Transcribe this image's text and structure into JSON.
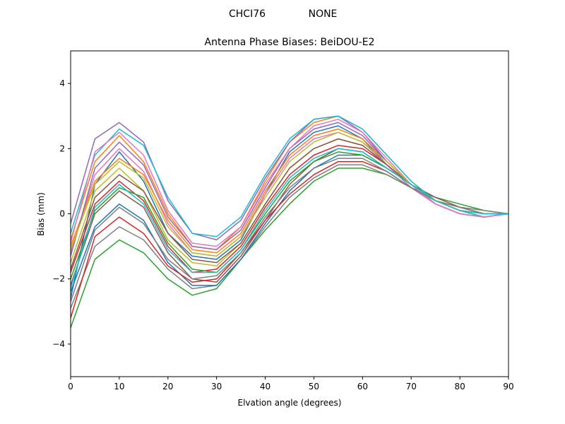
{
  "suptitle": {
    "left": "CHCI76",
    "right": "NONE"
  },
  "chart_data": {
    "type": "line",
    "title": "Antenna Phase Biases: BeiDOU-E2",
    "xlabel": "Elvation angle (degrees)",
    "ylabel": "Bias (mm)",
    "xlim": [
      0,
      90
    ],
    "ylim": [
      -5,
      5
    ],
    "xticks": [
      0,
      10,
      20,
      30,
      40,
      50,
      60,
      70,
      80,
      90
    ],
    "yticks": [
      -4,
      -2,
      0,
      2,
      4
    ],
    "ytick_labels": [
      "−4",
      "−2",
      "0",
      "2",
      "4"
    ],
    "grid": false,
    "legend": "none",
    "colors": [
      "#1f77b4",
      "#ff7f0e",
      "#2ca02c",
      "#d62728",
      "#9467bd",
      "#8c564b",
      "#e377c2",
      "#7f7f7f",
      "#bcbd22",
      "#17becf"
    ],
    "x": [
      0,
      5,
      10,
      15,
      20,
      25,
      30,
      35,
      40,
      45,
      50,
      55,
      60,
      65,
      70,
      75,
      80,
      85,
      90
    ],
    "series": [
      {
        "values": [
          -2.6,
          0.9,
          1.9,
          1.0,
          -0.6,
          -1.3,
          -1.4,
          -0.8,
          0.6,
          1.9,
          2.5,
          2.7,
          2.3,
          1.5,
          0.8,
          0.3,
          0.0,
          -0.1,
          0.0
        ]
      },
      {
        "values": [
          -0.8,
          1.6,
          2.4,
          1.6,
          0.0,
          -1.0,
          -1.1,
          -0.4,
          1.0,
          2.2,
          2.8,
          3.0,
          2.6,
          1.8,
          1.0,
          0.4,
          0.1,
          -0.1,
          0.0
        ]
      },
      {
        "values": [
          -3.5,
          -1.4,
          -0.8,
          -1.2,
          -2.0,
          -2.5,
          -2.3,
          -1.4,
          -0.5,
          0.3,
          1.0,
          1.4,
          1.4,
          1.2,
          0.8,
          0.5,
          0.3,
          0.1,
          0.0
        ]
      },
      {
        "values": [
          -1.8,
          0.3,
          1.0,
          0.4,
          -1.0,
          -1.8,
          -1.7,
          -1.0,
          0.2,
          1.2,
          1.8,
          2.1,
          2.0,
          1.5,
          0.9,
          0.4,
          0.1,
          0.0,
          0.0
        ]
      },
      {
        "values": [
          -0.3,
          2.3,
          2.8,
          2.2,
          0.4,
          -0.6,
          -0.8,
          -0.2,
          1.1,
          2.2,
          2.9,
          3.0,
          2.5,
          1.6,
          0.9,
          0.3,
          0.0,
          -0.1,
          0.0
        ]
      },
      {
        "values": [
          -2.2,
          0.0,
          0.7,
          0.2,
          -1.2,
          -2.0,
          -2.1,
          -1.3,
          -0.2,
          0.9,
          1.6,
          2.0,
          1.9,
          1.4,
          0.9,
          0.5,
          0.2,
          0.0,
          0.0
        ]
      },
      {
        "values": [
          -1.2,
          1.2,
          2.0,
          1.3,
          -0.3,
          -1.2,
          -1.3,
          -0.7,
          0.6,
          1.7,
          2.3,
          2.5,
          2.2,
          1.5,
          0.8,
          0.3,
          0.0,
          -0.1,
          0.0
        ]
      },
      {
        "values": [
          -2.9,
          -1.0,
          -0.4,
          -0.8,
          -1.7,
          -2.3,
          -2.2,
          -1.4,
          -0.4,
          0.5,
          1.1,
          1.5,
          1.5,
          1.2,
          0.8,
          0.4,
          0.2,
          0.1,
          0.0
        ]
      },
      {
        "values": [
          -1.5,
          0.7,
          1.4,
          0.7,
          -0.8,
          -1.5,
          -1.6,
          -0.9,
          0.3,
          1.4,
          2.0,
          2.3,
          2.1,
          1.5,
          0.9,
          0.4,
          0.1,
          0.0,
          0.0
        ]
      },
      {
        "values": [
          -0.6,
          1.8,
          2.6,
          2.1,
          0.5,
          -0.6,
          -0.7,
          -0.1,
          1.2,
          2.3,
          2.9,
          3.0,
          2.6,
          1.8,
          1.0,
          0.4,
          0.1,
          -0.1,
          0.0
        ]
      },
      {
        "values": [
          -2.4,
          -0.4,
          0.3,
          -0.2,
          -1.5,
          -2.2,
          -2.2,
          -1.4,
          -0.3,
          0.7,
          1.4,
          1.8,
          1.8,
          1.4,
          0.9,
          0.4,
          0.1,
          0.0,
          0.0
        ]
      },
      {
        "values": [
          -1.0,
          1.0,
          1.7,
          1.2,
          -0.2,
          -1.1,
          -1.2,
          -0.6,
          0.7,
          1.8,
          2.4,
          2.6,
          2.3,
          1.6,
          0.9,
          0.3,
          0.0,
          -0.1,
          0.0
        ]
      },
      {
        "values": [
          -2.0,
          0.1,
          0.8,
          0.5,
          -0.9,
          -1.7,
          -1.8,
          -1.1,
          0.0,
          1.0,
          1.6,
          1.9,
          1.8,
          1.4,
          0.9,
          0.4,
          0.2,
          0.0,
          0.0
        ]
      },
      {
        "values": [
          -3.2,
          -0.7,
          -0.1,
          -0.6,
          -1.6,
          -2.1,
          -2.0,
          -1.2,
          -0.2,
          0.6,
          1.2,
          1.6,
          1.6,
          1.3,
          0.8,
          0.4,
          0.2,
          0.0,
          0.0
        ]
      },
      {
        "values": [
          -1.3,
          1.4,
          2.2,
          1.5,
          -0.1,
          -1.0,
          -1.1,
          -0.5,
          0.8,
          2.0,
          2.6,
          2.8,
          2.4,
          1.6,
          0.9,
          0.3,
          0.0,
          -0.1,
          0.0
        ]
      },
      {
        "values": [
          -1.7,
          0.5,
          1.2,
          0.7,
          -0.6,
          -1.4,
          -1.5,
          -0.9,
          0.3,
          1.4,
          2.0,
          2.3,
          2.1,
          1.5,
          0.9,
          0.4,
          0.1,
          0.0,
          0.0
        ]
      },
      {
        "values": [
          -0.9,
          1.9,
          2.5,
          1.8,
          0.1,
          -0.9,
          -1.0,
          -0.4,
          0.9,
          2.0,
          2.7,
          2.9,
          2.5,
          1.7,
          0.9,
          0.3,
          0.0,
          -0.1,
          0.0
        ]
      },
      {
        "values": [
          -2.7,
          -0.5,
          0.2,
          -0.3,
          -1.4,
          -2.0,
          -1.9,
          -1.2,
          -0.1,
          0.8,
          1.4,
          1.7,
          1.7,
          1.3,
          0.8,
          0.4,
          0.2,
          0.0,
          0.0
        ]
      },
      {
        "values": [
          -1.1,
          0.9,
          1.6,
          1.1,
          -0.4,
          -1.2,
          -1.3,
          -0.7,
          0.5,
          1.6,
          2.2,
          2.5,
          2.2,
          1.6,
          0.9,
          0.4,
          0.1,
          0.0,
          0.0
        ]
      },
      {
        "values": [
          -2.3,
          0.2,
          0.9,
          0.3,
          -1.1,
          -1.8,
          -1.8,
          -1.1,
          0.1,
          1.1,
          1.7,
          2.0,
          1.9,
          1.4,
          0.9,
          0.4,
          0.1,
          0.0,
          0.0
        ]
      }
    ]
  }
}
